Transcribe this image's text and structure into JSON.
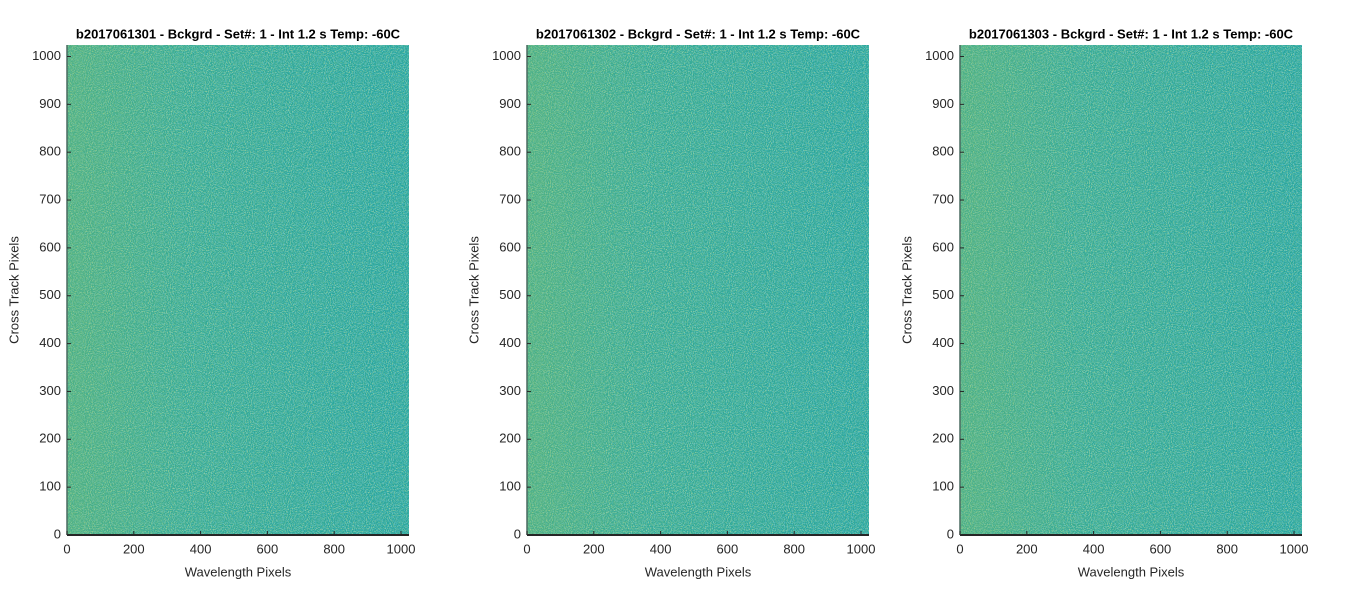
{
  "chart_data": [
    {
      "type": "image",
      "title": "b2017061301 - Bckgrd - Set#: 1 - Int 1.2 s Temp: -60C",
      "xlabel": "Wavelength Pixels",
      "ylabel": "Cross Track Pixels",
      "xlim": [
        0,
        1024
      ],
      "ylim": [
        0,
        1024
      ],
      "xticks": [
        0,
        200,
        400,
        600,
        800,
        1000
      ],
      "yticks": [
        0,
        100,
        200,
        300,
        400,
        500,
        600,
        700,
        800,
        900,
        1000
      ]
    },
    {
      "type": "image",
      "title": "b2017061302 - Bckgrd - Set#: 1 - Int 1.2 s Temp: -60C",
      "xlabel": "Wavelength Pixels",
      "ylabel": "Cross Track Pixels",
      "xlim": [
        0,
        1024
      ],
      "ylim": [
        0,
        1024
      ],
      "xticks": [
        0,
        200,
        400,
        600,
        800,
        1000
      ],
      "yticks": [
        0,
        100,
        200,
        300,
        400,
        500,
        600,
        700,
        800,
        900,
        1000
      ]
    },
    {
      "type": "image",
      "title": "b2017061303 - Bckgrd - Set#: 1 - Int 1.2 s Temp: -60C",
      "xlabel": "Wavelength Pixels",
      "ylabel": "Cross Track Pixels",
      "xlim": [
        0,
        1024
      ],
      "ylim": [
        0,
        1024
      ],
      "xticks": [
        0,
        200,
        400,
        600,
        800,
        1000
      ],
      "yticks": [
        0,
        100,
        200,
        300,
        400,
        500,
        600,
        700,
        800,
        900,
        1000
      ]
    }
  ]
}
